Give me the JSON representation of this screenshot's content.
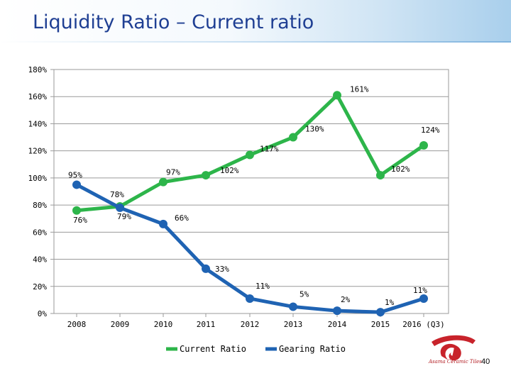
{
  "slide": {
    "title": "Liquidity Ratio – Current ratio",
    "page_number": "40",
    "logo_text": "Asama Ceramic Tiles"
  },
  "colors": {
    "current_ratio": "#2db54a",
    "gearing_ratio": "#1f63b3",
    "title": "#1f3f93",
    "logo": "#c8232b"
  },
  "chart_data": {
    "type": "line",
    "title": "",
    "xlabel": "",
    "ylabel": "",
    "categories": [
      "2008",
      "2009",
      "2010",
      "2011",
      "2012",
      "2013",
      "2014",
      "2015",
      "2016 (Q3)"
    ],
    "ylim": [
      0,
      180
    ],
    "yticks": [
      0,
      20,
      40,
      60,
      80,
      100,
      120,
      140,
      160,
      180
    ],
    "ytick_labels": [
      "0%",
      "20%",
      "40%",
      "60%",
      "80%",
      "100%",
      "120%",
      "140%",
      "160%",
      "180%"
    ],
    "grid": "horizontal",
    "legend_position": "bottom",
    "series": [
      {
        "name": "Current Ratio",
        "values": [
          76,
          79,
          97,
          102,
          117,
          130,
          161,
          102,
          124
        ],
        "labels": [
          "76%",
          "79%",
          "97%",
          "102%",
          "117%",
          "130%",
          "161%",
          "102%",
          "124%"
        ]
      },
      {
        "name": "Gearing Ratio",
        "values": [
          95,
          78,
          66,
          33,
          11,
          5,
          2,
          1,
          11
        ],
        "labels": [
          "95%",
          "78%",
          "66%",
          "33%",
          "11%",
          "5%",
          "2%",
          "1%",
          "11%"
        ]
      }
    ]
  }
}
